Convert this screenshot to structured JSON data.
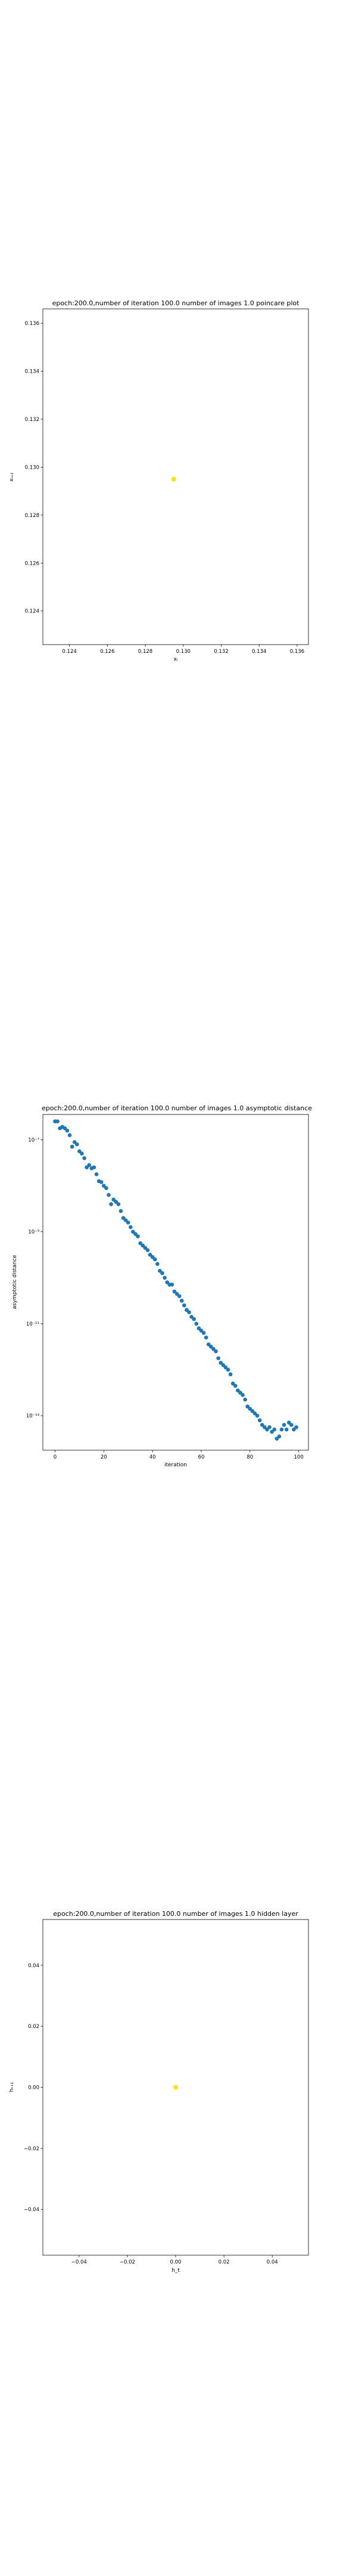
{
  "chart_data": [
    {
      "type": "scatter",
      "title": "epoch:200.0,number of iteration 100.0 number of images 1.0 poincare plot",
      "xlabel": "xᵢ",
      "ylabel": "xᵢ₊₁",
      "xlim": [
        0.1226,
        0.1366
      ],
      "ylim": [
        0.1226,
        0.1366
      ],
      "xticks": [
        0.124,
        0.126,
        0.128,
        0.13,
        0.132,
        0.134,
        0.136
      ],
      "yticks": [
        0.124,
        0.126,
        0.128,
        0.13,
        0.132,
        0.134,
        0.136
      ],
      "xtick_labels": [
        "0.124",
        "0.126",
        "0.128",
        "0.130",
        "0.132",
        "0.134",
        "0.136"
      ],
      "ytick_labels": [
        "0.124",
        "0.126",
        "0.128",
        "0.130",
        "0.132",
        "0.134",
        "0.136"
      ],
      "marker_color": "#ffe11a",
      "points": [
        {
          "x": 0.1295,
          "y": 0.1295
        }
      ],
      "grid": false
    },
    {
      "type": "scatter",
      "title": "epoch:200.0,number of iteration 100.0  number of images 1.0 asymptotic distance",
      "xlabel": "iteration",
      "ylabel": "asymptotic distance",
      "yscale": "log",
      "xlim": [
        -5,
        104
      ],
      "ylim_log10": [
        -13.75,
        -6.45
      ],
      "xticks": [
        0,
        20,
        40,
        60,
        80,
        100
      ],
      "xtick_labels": [
        "0",
        "20",
        "40",
        "60",
        "80",
        "100"
      ],
      "yticks_log10": [
        -13,
        -11,
        -9,
        -7
      ],
      "ytick_labels": [
        "10⁻¹³",
        "10⁻¹¹",
        "10⁻⁹",
        "10⁻⁷"
      ],
      "marker_color": "#1f77b4",
      "grid": false,
      "x": [
        0,
        1,
        2,
        3,
        4,
        5,
        6,
        7,
        8,
        9,
        10,
        11,
        12,
        13,
        14,
        15,
        16,
        17,
        18,
        19,
        20,
        21,
        22,
        23,
        24,
        25,
        26,
        27,
        28,
        29,
        30,
        31,
        32,
        33,
        34,
        35,
        36,
        37,
        38,
        39,
        40,
        41,
        42,
        43,
        44,
        45,
        46,
        47,
        48,
        49,
        50,
        51,
        52,
        53,
        54,
        55,
        56,
        57,
        58,
        59,
        60,
        61,
        62,
        63,
        64,
        65,
        66,
        67,
        68,
        69,
        70,
        71,
        72,
        73,
        74,
        75,
        76,
        77,
        78,
        79,
        80,
        81,
        82,
        83,
        84,
        85,
        86,
        87,
        88,
        89,
        90,
        91,
        92,
        93,
        94,
        95,
        96,
        97,
        98,
        99
      ],
      "y_log10": [
        -6.6,
        -6.6,
        -6.75,
        -6.72,
        -6.75,
        -6.8,
        -6.9,
        -7.15,
        -7.05,
        -7.1,
        -7.25,
        -7.3,
        -7.4,
        -7.6,
        -7.55,
        -7.62,
        -7.6,
        -7.75,
        -7.9,
        -7.92,
        -8.0,
        -8.05,
        -8.2,
        -8.4,
        -8.3,
        -8.35,
        -8.4,
        -8.55,
        -8.7,
        -8.75,
        -8.8,
        -8.9,
        -9.0,
        -9.05,
        -9.1,
        -9.25,
        -9.3,
        -9.35,
        -9.4,
        -9.5,
        -9.55,
        -9.6,
        -9.7,
        -9.85,
        -9.9,
        -10.0,
        -10.1,
        -10.15,
        -10.15,
        -10.3,
        -10.35,
        -10.4,
        -10.5,
        -10.6,
        -10.7,
        -10.75,
        -10.85,
        -10.9,
        -11.0,
        -11.1,
        -11.15,
        -11.2,
        -11.3,
        -11.45,
        -11.5,
        -11.55,
        -11.6,
        -11.75,
        -11.85,
        -11.9,
        -11.95,
        -12.0,
        -12.1,
        -12.3,
        -12.35,
        -12.45,
        -12.5,
        -12.55,
        -12.65,
        -12.8,
        -12.85,
        -12.9,
        -12.95,
        -13.0,
        -13.1,
        -13.2,
        -13.25,
        -13.3,
        -13.25,
        -13.35,
        -13.3,
        -13.5,
        -13.45,
        -13.3,
        -13.2,
        -13.3,
        -13.15,
        -13.2,
        -13.3,
        -13.25
      ]
    },
    {
      "type": "scatter",
      "title": "epoch:200.0,number of iteration 100.0  number of images 1.0 hidden layer",
      "xlabel": "h_t",
      "ylabel": "hₜ₊₁",
      "xlim": [
        -0.055,
        0.055
      ],
      "ylim": [
        -0.055,
        0.055
      ],
      "xticks": [
        -0.04,
        -0.02,
        0.0,
        0.02,
        0.04
      ],
      "yticks": [
        -0.04,
        -0.02,
        0.0,
        0.02,
        0.04
      ],
      "xtick_labels": [
        "−0.04",
        "−0.02",
        "0.00",
        "0.02",
        "0.04"
      ],
      "ytick_labels": [
        "−0.04",
        "−0.02",
        "0.00",
        "0.02",
        "0.04"
      ],
      "marker_color": "#ffe11a",
      "points": [
        {
          "x": 0.0,
          "y": 0.0
        }
      ],
      "grid": false
    }
  ]
}
